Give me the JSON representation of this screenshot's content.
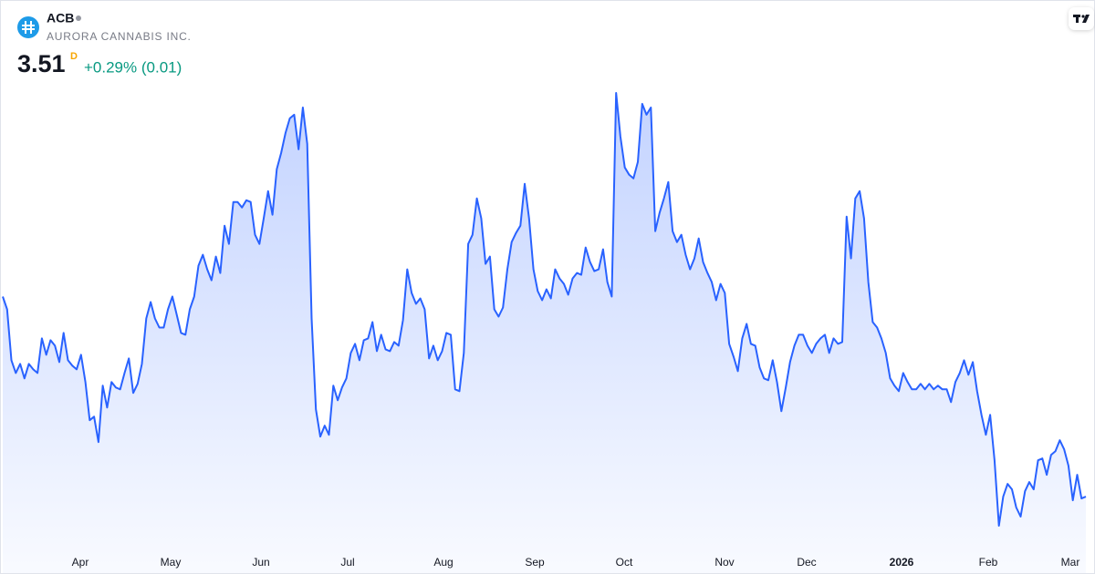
{
  "chart_data": {
    "type": "area",
    "symbol": "ACB",
    "company": "AURORA CANNABIS INC.",
    "interval": "D",
    "change": "+0.29% (0.01)",
    "color": "#2962ff",
    "x_labels": [
      "Apr",
      "May",
      "Jun",
      "Jul",
      "Aug",
      "Sep",
      "Oct",
      "Nov",
      "Dec",
      "2026",
      "Feb",
      "Mar"
    ],
    "values": [
      4.61,
      4.54,
      4.26,
      4.19,
      4.24,
      4.16,
      4.24,
      4.21,
      4.19,
      4.38,
      4.29,
      4.37,
      4.34,
      4.25,
      4.41,
      4.26,
      4.23,
      4.21,
      4.29,
      4.14,
      3.93,
      3.95,
      3.81,
      4.12,
      4.0,
      4.14,
      4.11,
      4.1,
      4.19,
      4.27,
      4.08,
      4.13,
      4.24,
      4.49,
      4.58,
      4.49,
      4.44,
      4.44,
      4.54,
      4.61,
      4.51,
      4.41,
      4.4,
      4.54,
      4.61,
      4.78,
      4.84,
      4.76,
      4.7,
      4.83,
      4.74,
      5.0,
      4.9,
      5.13,
      5.13,
      5.1,
      5.14,
      5.13,
      4.95,
      4.9,
      5.04,
      5.19,
      5.06,
      5.31,
      5.4,
      5.51,
      5.59,
      5.61,
      5.42,
      5.65,
      5.45,
      4.49,
      3.99,
      3.84,
      3.9,
      3.85,
      4.12,
      4.04,
      4.11,
      4.16,
      4.3,
      4.35,
      4.26,
      4.37,
      4.38,
      4.47,
      4.31,
      4.4,
      4.32,
      4.31,
      4.36,
      4.34,
      4.48,
      4.76,
      4.63,
      4.57,
      4.6,
      4.54,
      4.27,
      4.34,
      4.26,
      4.31,
      4.41,
      4.4,
      4.1,
      4.09,
      4.3,
      4.9,
      4.95,
      5.15,
      5.04,
      4.79,
      4.83,
      4.54,
      4.5,
      4.55,
      4.76,
      4.91,
      4.96,
      5.0,
      5.23,
      5.04,
      4.76,
      4.64,
      4.59,
      4.65,
      4.6,
      4.76,
      4.71,
      4.68,
      4.62,
      4.71,
      4.74,
      4.73,
      4.88,
      4.8,
      4.75,
      4.76,
      4.87,
      4.69,
      4.61,
      5.73,
      5.49,
      5.32,
      5.28,
      5.26,
      5.35,
      5.67,
      5.61,
      5.65,
      4.97,
      5.07,
      5.15,
      5.24,
      4.97,
      4.91,
      4.95,
      4.84,
      4.76,
      4.82,
      4.93,
      4.8,
      4.74,
      4.69,
      4.59,
      4.68,
      4.63,
      4.35,
      4.28,
      4.2,
      4.38,
      4.46,
      4.35,
      4.34,
      4.22,
      4.16,
      4.15,
      4.26,
      4.14,
      3.98,
      4.11,
      4.25,
      4.34,
      4.4,
      4.4,
      4.34,
      4.3,
      4.35,
      4.38,
      4.4,
      4.3,
      4.38,
      4.35,
      4.36,
      5.05,
      4.82,
      5.15,
      5.19,
      5.04,
      4.69,
      4.47,
      4.44,
      4.38,
      4.3,
      4.16,
      4.12,
      4.09,
      4.19,
      4.14,
      4.1,
      4.1,
      4.13,
      4.1,
      4.13,
      4.1,
      4.12,
      4.1,
      4.1,
      4.03,
      4.14,
      4.19,
      4.26,
      4.18,
      4.25,
      4.09,
      3.96,
      3.85,
      3.96,
      3.71,
      3.35,
      3.51,
      3.58,
      3.55,
      3.45,
      3.4,
      3.54,
      3.59,
      3.55,
      3.71,
      3.72,
      3.63,
      3.74,
      3.76,
      3.82,
      3.77,
      3.68,
      3.49,
      3.63,
      3.5,
      3.51
    ]
  }
}
